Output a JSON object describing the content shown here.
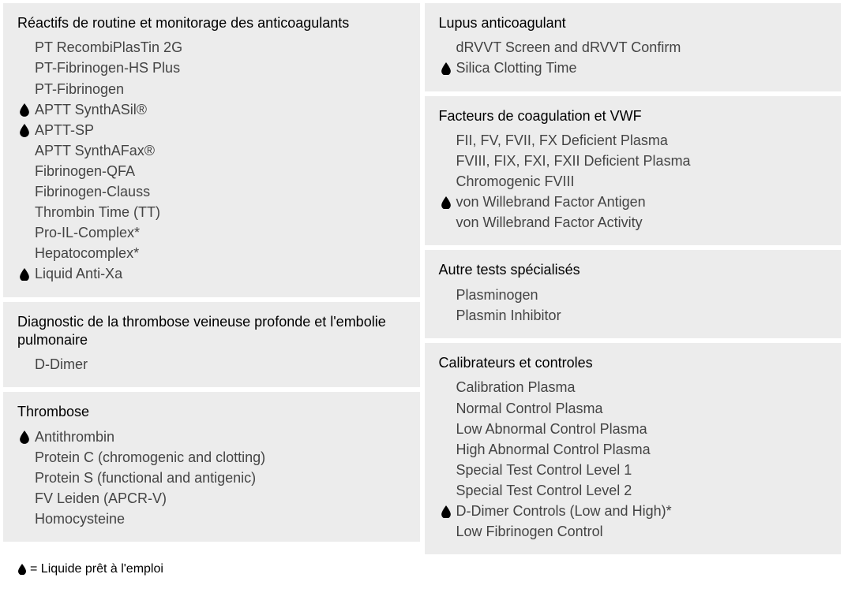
{
  "colors": {
    "panel_bg": "#ececec",
    "title_color": "#000000",
    "item_color": "#444444",
    "drop_color": "#000000"
  },
  "left_column": [
    {
      "title": "Réactifs de routine et monitorage des anticoagulants",
      "items": [
        {
          "text": "PT RecombiPlasTin 2G",
          "drop": false
        },
        {
          "text": "PT-Fibrinogen-HS Plus",
          "drop": false
        },
        {
          "text": "PT-Fibrinogen",
          "drop": false
        },
        {
          "text": "APTT SynthASil®",
          "drop": true
        },
        {
          "text": "APTT-SP",
          "drop": true
        },
        {
          "text": "APTT SynthAFax®",
          "drop": false
        },
        {
          "text": "Fibrinogen-QFA",
          "drop": false
        },
        {
          "text": "Fibrinogen-Clauss",
          "drop": false
        },
        {
          "text": "Thrombin Time (TT)",
          "drop": false
        },
        {
          "text": "Pro-IL-Complex*",
          "drop": false
        },
        {
          "text": "Hepatocomplex*",
          "drop": false
        },
        {
          "text": "Liquid Anti-Xa",
          "drop": true
        }
      ]
    },
    {
      "title": "Diagnostic de la thrombose veineuse profonde et l'embolie pulmonaire",
      "items": [
        {
          "text": "D-Dimer",
          "drop": false
        }
      ]
    },
    {
      "title": "Thrombose",
      "items": [
        {
          "text": "Antithrombin",
          "drop": true
        },
        {
          "text": "Protein C (chromogenic and clotting)",
          "drop": false
        },
        {
          "text": "Protein S (functional and antigenic)",
          "drop": false
        },
        {
          "text": "FV Leiden (APCR-V)",
          "drop": false
        },
        {
          "text": "Homocysteine",
          "drop": false
        }
      ]
    }
  ],
  "right_column": [
    {
      "title": "Lupus anticoagulant",
      "items": [
        {
          "text": "dRVVT Screen and dRVVT Confirm",
          "drop": false
        },
        {
          "text": "Silica Clotting Time",
          "drop": true
        }
      ]
    },
    {
      "title": "Facteurs de coagulation et VWF",
      "items": [
        {
          "text": "FII, FV, FVII, FX Deficient Plasma",
          "drop": false
        },
        {
          "text": "FVIII, FIX, FXI, FXII Deficient Plasma",
          "drop": false
        },
        {
          "text": "Chromogenic FVIII",
          "drop": false
        },
        {
          "text": "von Willebrand Factor Antigen",
          "drop": true
        },
        {
          "text": "von Willebrand Factor Activity",
          "drop": false
        }
      ]
    },
    {
      "title": "Autre tests spécialisés",
      "items": [
        {
          "text": "Plasminogen",
          "drop": false
        },
        {
          "text": "Plasmin Inhibitor",
          "drop": false
        }
      ]
    },
    {
      "title": "Calibrateurs et controles",
      "items": [
        {
          "text": "Calibration Plasma",
          "drop": false
        },
        {
          "text": "Normal Control Plasma",
          "drop": false
        },
        {
          "text": "Low Abnormal Control Plasma",
          "drop": false
        },
        {
          "text": "High Abnormal Control Plasma",
          "drop": false
        },
        {
          "text": "Special Test Control Level 1",
          "drop": false
        },
        {
          "text": "Special Test Control Level 2",
          "drop": false
        },
        {
          "text": "D-Dimer Controls (Low and High)*",
          "drop": true
        },
        {
          "text": "Low Fibrinogen Control",
          "drop": false
        }
      ]
    }
  ],
  "legend": {
    "text": "=  Liquide prêt à l'emploi"
  }
}
